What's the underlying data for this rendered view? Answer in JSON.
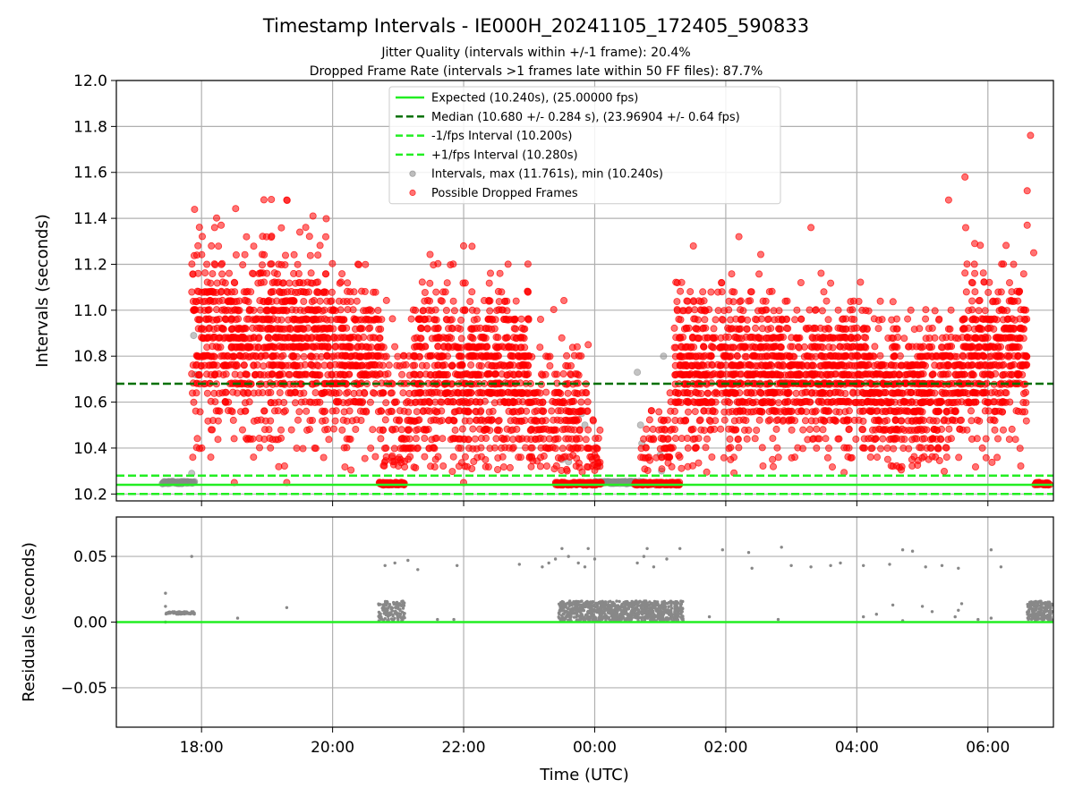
{
  "figure": {
    "title": "Timestamp Intervals - IE000H_20241105_172405_590833",
    "subtitle1": "Jitter Quality (intervals within +/-1 frame): 20.4%",
    "subtitle2": "Dropped Frame Rate (intervals >1 frames late within 50 FF files): 87.7%"
  },
  "colors": {
    "expected": "#22ee22",
    "median": "#007000",
    "fps_band": "#22ee22",
    "intervals": "#888888",
    "dropped": "#ff0000",
    "grid": "#b0b0b0"
  },
  "chart_data": [
    {
      "type": "scatter",
      "ylabel": "Intervals (seconds)",
      "ylim": [
        10.17,
        12.0
      ],
      "yticks": [
        10.2,
        10.4,
        10.6,
        10.8,
        11.0,
        11.2,
        11.4,
        11.6,
        11.8,
        12.0
      ],
      "ytick_labels": [
        "10.2",
        "10.4",
        "10.6",
        "10.8",
        "11.0",
        "11.2",
        "11.4",
        "11.6",
        "11.8",
        "12.0"
      ],
      "xlim_hours": [
        16.7,
        31.0
      ],
      "xticks_hours": [
        18,
        20,
        22,
        24,
        26,
        28,
        30
      ],
      "grid": true,
      "legend_position": "top-center",
      "legend": [
        {
          "label": "Expected (10.240s), (25.00000 fps)",
          "style": "solid-line",
          "color": "#22ee22"
        },
        {
          "label": "Median (10.680 +/- 0.284 s), (23.96904 +/- 0.64 fps)",
          "style": "dashed-line",
          "color": "#007000"
        },
        {
          "label": "-1/fps Interval (10.200s)",
          "style": "dashed-line",
          "color": "#22ee22"
        },
        {
          "label": "+1/fps Interval (10.280s)",
          "style": "dashed-line",
          "color": "#22ee22"
        },
        {
          "label": "Intervals, max (11.761s), min (10.240s)",
          "style": "marker",
          "color": "#888888"
        },
        {
          "label": "Possible Dropped Frames",
          "style": "marker",
          "color": "#ff0000"
        }
      ],
      "reference_lines": {
        "expected": 10.24,
        "median": 10.68,
        "minus_fps": 10.2,
        "plus_fps": 10.28
      },
      "max_interval": 11.761,
      "min_interval": 10.24,
      "dropped_clusters": [
        {
          "start": 17.85,
          "end": 19.95,
          "center": 10.87,
          "spread": 0.2,
          "count": 900
        },
        {
          "start": 19.95,
          "end": 20.75,
          "center": 10.8,
          "spread": 0.18,
          "count": 300
        },
        {
          "start": 20.75,
          "end": 21.2,
          "center": 10.55,
          "spread": 0.2,
          "count": 100
        },
        {
          "start": 21.2,
          "end": 23.0,
          "center": 10.72,
          "spread": 0.19,
          "count": 750
        },
        {
          "start": 23.0,
          "end": 23.9,
          "center": 10.55,
          "spread": 0.15,
          "count": 220
        },
        {
          "start": 23.9,
          "end": 24.1,
          "center": 10.35,
          "spread": 0.08,
          "count": 25
        },
        {
          "start": 24.7,
          "end": 25.2,
          "center": 10.42,
          "spread": 0.1,
          "count": 60
        },
        {
          "start": 25.2,
          "end": 26.9,
          "center": 10.73,
          "spread": 0.17,
          "count": 700
        },
        {
          "start": 26.9,
          "end": 28.2,
          "center": 10.72,
          "spread": 0.15,
          "count": 520
        },
        {
          "start": 28.2,
          "end": 29.6,
          "center": 10.64,
          "spread": 0.15,
          "count": 550
        },
        {
          "start": 29.6,
          "end": 30.6,
          "center": 10.8,
          "spread": 0.17,
          "count": 420
        }
      ],
      "dropped_baseline_segments": [
        {
          "start": 20.7,
          "end": 21.1,
          "count": 90
        },
        {
          "start": 23.4,
          "end": 24.1,
          "count": 150
        },
        {
          "start": 24.6,
          "end": 25.3,
          "count": 150
        },
        {
          "start": 30.7,
          "end": 30.95,
          "count": 40
        }
      ],
      "dropped_outliers": [
        {
          "t": 18.3,
          "v": 11.37
        },
        {
          "t": 18.2,
          "v": 11.36
        },
        {
          "t": 19.3,
          "v": 11.48
        },
        {
          "t": 19.7,
          "v": 11.41
        },
        {
          "t": 19.5,
          "v": 11.34
        },
        {
          "t": 22.0,
          "v": 11.28
        },
        {
          "t": 23.9,
          "v": 10.85
        },
        {
          "t": 26.2,
          "v": 11.32
        },
        {
          "t": 27.3,
          "v": 11.36
        },
        {
          "t": 29.4,
          "v": 11.48
        },
        {
          "t": 29.65,
          "v": 11.58
        },
        {
          "t": 30.6,
          "v": 11.52
        },
        {
          "t": 30.65,
          "v": 11.761
        },
        {
          "t": 30.6,
          "v": 11.37
        },
        {
          "t": 30.7,
          "v": 11.25
        },
        {
          "t": 29.8,
          "v": 11.29
        },
        {
          "t": 18.5,
          "v": 10.25
        },
        {
          "t": 19.3,
          "v": 10.25
        },
        {
          "t": 22.0,
          "v": 10.25
        }
      ],
      "gray_segments": [
        {
          "start": 17.4,
          "end": 17.9,
          "value": 10.25
        },
        {
          "start": 24.0,
          "end": 24.75,
          "value": 10.25
        }
      ],
      "gray_points": [
        {
          "t": 17.85,
          "v": 10.29
        },
        {
          "t": 17.9,
          "v": 10.72
        },
        {
          "t": 17.88,
          "v": 10.89
        },
        {
          "t": 24.65,
          "v": 10.73
        },
        {
          "t": 25.05,
          "v": 10.8
        },
        {
          "t": 24.7,
          "v": 10.5
        },
        {
          "t": 24.72,
          "v": 10.42
        },
        {
          "t": 25.0,
          "v": 10.37
        },
        {
          "t": 25.02,
          "v": 10.3
        },
        {
          "t": 23.8,
          "v": 10.55
        },
        {
          "t": 23.85,
          "v": 10.5
        },
        {
          "t": 23.5,
          "v": 10.35
        },
        {
          "t": 23.6,
          "v": 10.34
        },
        {
          "t": 24.05,
          "v": 10.32
        }
      ]
    },
    {
      "type": "scatter",
      "ylabel": "Residuals (seconds)",
      "xlabel": "Time (UTC)",
      "ylim": [
        -0.08,
        0.08
      ],
      "yticks": [
        -0.05,
        0.0,
        0.05
      ],
      "ytick_labels": [
        "−0.05",
        "0.00",
        "0.05"
      ],
      "xlim_hours": [
        16.7,
        31.0
      ],
      "xticks_hours": [
        18,
        20,
        22,
        24,
        26,
        28,
        30
      ],
      "xtick_labels": [
        "18:00",
        "20:00",
        "22:00",
        "00:00",
        "02:00",
        "04:00",
        "06:00"
      ],
      "grid": true,
      "zero_line": 0.0,
      "dense_bands": [
        {
          "start": 17.45,
          "end": 17.9,
          "low": 0.006,
          "high": 0.008,
          "count": 60
        },
        {
          "start": 20.7,
          "end": 21.1,
          "low": 0.001,
          "high": 0.016,
          "count": 120
        },
        {
          "start": 23.45,
          "end": 25.35,
          "low": 0.001,
          "high": 0.016,
          "count": 900
        },
        {
          "start": 30.6,
          "end": 30.98,
          "low": 0.001,
          "high": 0.016,
          "count": 200
        }
      ],
      "sparse_points": [
        {
          "t": 17.45,
          "v": 0.022
        },
        {
          "t": 17.45,
          "v": 0.012
        },
        {
          "t": 17.45,
          "v": 0.0
        },
        {
          "t": 17.85,
          "v": 0.05
        },
        {
          "t": 18.55,
          "v": 0.003
        },
        {
          "t": 19.3,
          "v": 0.011
        },
        {
          "t": 20.8,
          "v": 0.043
        },
        {
          "t": 20.95,
          "v": 0.045
        },
        {
          "t": 21.15,
          "v": 0.047
        },
        {
          "t": 21.3,
          "v": 0.04
        },
        {
          "t": 21.6,
          "v": 0.002
        },
        {
          "t": 21.85,
          "v": 0.002
        },
        {
          "t": 21.9,
          "v": 0.043
        },
        {
          "t": 22.85,
          "v": 0.044
        },
        {
          "t": 23.2,
          "v": 0.042
        },
        {
          "t": 23.3,
          "v": 0.045
        },
        {
          "t": 23.4,
          "v": 0.048
        },
        {
          "t": 23.5,
          "v": 0.056
        },
        {
          "t": 23.6,
          "v": 0.05
        },
        {
          "t": 23.75,
          "v": 0.045
        },
        {
          "t": 23.85,
          "v": 0.042
        },
        {
          "t": 23.9,
          "v": 0.056
        },
        {
          "t": 24.0,
          "v": 0.048
        },
        {
          "t": 24.65,
          "v": 0.045
        },
        {
          "t": 24.75,
          "v": 0.05
        },
        {
          "t": 24.8,
          "v": 0.056
        },
        {
          "t": 24.9,
          "v": 0.042
        },
        {
          "t": 25.1,
          "v": 0.048
        },
        {
          "t": 25.3,
          "v": 0.056
        },
        {
          "t": 25.75,
          "v": 0.004
        },
        {
          "t": 25.95,
          "v": 0.055
        },
        {
          "t": 26.35,
          "v": 0.053
        },
        {
          "t": 26.4,
          "v": 0.041
        },
        {
          "t": 26.8,
          "v": 0.002
        },
        {
          "t": 26.85,
          "v": 0.057
        },
        {
          "t": 27.0,
          "v": 0.043
        },
        {
          "t": 27.3,
          "v": 0.042
        },
        {
          "t": 27.6,
          "v": 0.043
        },
        {
          "t": 27.75,
          "v": 0.045
        },
        {
          "t": 28.1,
          "v": 0.043
        },
        {
          "t": 28.5,
          "v": 0.044
        },
        {
          "t": 28.7,
          "v": 0.055
        },
        {
          "t": 28.85,
          "v": 0.054
        },
        {
          "t": 29.05,
          "v": 0.042
        },
        {
          "t": 29.3,
          "v": 0.043
        },
        {
          "t": 29.5,
          "v": 0.004
        },
        {
          "t": 29.55,
          "v": 0.041
        },
        {
          "t": 29.85,
          "v": 0.002
        },
        {
          "t": 30.05,
          "v": 0.055
        },
        {
          "t": 30.2,
          "v": 0.042
        },
        {
          "t": 28.1,
          "v": 0.004
        },
        {
          "t": 28.3,
          "v": 0.006
        },
        {
          "t": 28.55,
          "v": 0.013
        },
        {
          "t": 28.7,
          "v": 0.001
        },
        {
          "t": 29.0,
          "v": 0.012
        },
        {
          "t": 29.15,
          "v": 0.008
        },
        {
          "t": 29.55,
          "v": 0.009
        },
        {
          "t": 29.6,
          "v": 0.014
        },
        {
          "t": 30.05,
          "v": 0.003
        }
      ]
    }
  ]
}
